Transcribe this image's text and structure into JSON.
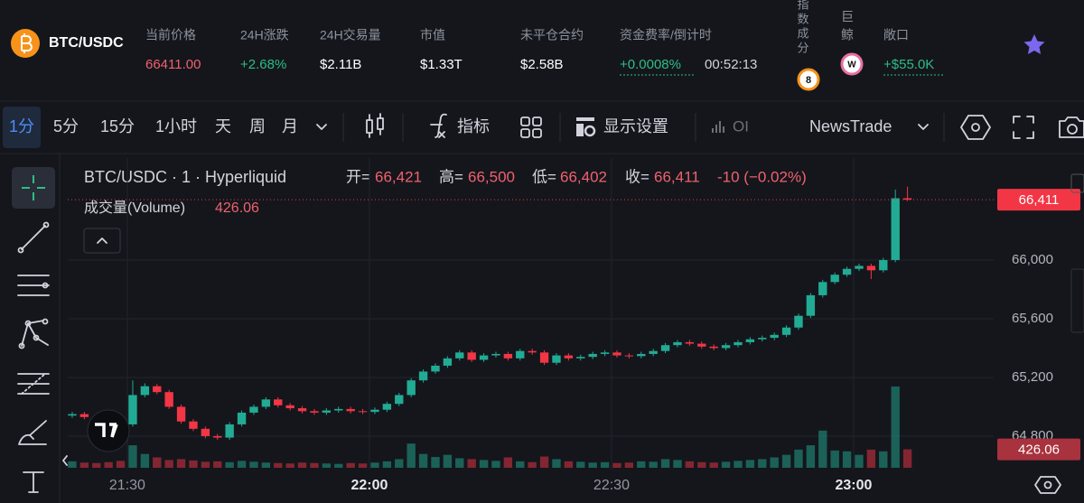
{
  "header": {
    "symbol": "BTC/USDC",
    "stats": [
      {
        "label": "当前价格",
        "value": "66411.00"
      },
      {
        "label": "24H涨跌",
        "value": "+2.68%"
      },
      {
        "label": "24H交易量",
        "value": "$2.11B"
      },
      {
        "label": "市值",
        "value": "$1.33T"
      },
      {
        "label": "未平仓合约",
        "value": "$2.58B"
      },
      {
        "label": "资金费率/倒计时",
        "value": "+0.0008%",
        "countdown": "00:52:13"
      }
    ],
    "index_label": [
      "指",
      "数",
      "成",
      "分"
    ],
    "index_badge": "8",
    "whale_label": [
      "巨",
      "鲸"
    ],
    "whale_badge": "W",
    "exposure_label": "敞口",
    "exposure_value": "+$55.0K"
  },
  "toolbar": {
    "intervals": [
      "1分",
      "5分",
      "15分",
      "1小时",
      "天",
      "周",
      "月"
    ],
    "indicators": "指标",
    "display_settings": "显示设置",
    "oi": "OI",
    "source": "NewsTrade"
  },
  "legend": {
    "title": "BTC/USDC · 1 · Hyperliquid",
    "open_label": "开=",
    "open": "66,421",
    "high_label": "高=",
    "high": "66,500",
    "low_label": "低=",
    "low": "66,402",
    "close_label": "收=",
    "close": "66,411",
    "change": "-10 (−0.02%)",
    "volume_label": "成交量(Volume)"
  },
  "chart_data": {
    "type": "candlestick",
    "up_color": "#22ab94",
    "down_color": "#f23645",
    "open": [
      64940,
      64950,
      64930,
      64920,
      64900,
      64880,
      65080,
      65140,
      65100,
      65000,
      64900,
      64850,
      64800,
      64790,
      64880,
      64960,
      65000,
      65050,
      65010,
      64990,
      64970,
      64960,
      64975,
      64985,
      64970,
      64965,
      64980,
      65020,
      65080,
      65180,
      65240,
      65280,
      65330,
      65370,
      65320,
      65350,
      65360,
      65330,
      65380,
      65370,
      65300,
      65350,
      65330,
      65340,
      65360,
      65370,
      65350,
      65345,
      65360,
      65380,
      65420,
      65440,
      65430,
      65410,
      65400,
      65420,
      65440,
      65460,
      65470,
      65490,
      65540,
      65620,
      65760,
      65850,
      65900,
      65940,
      65960,
      65930,
      66000,
      66421
    ],
    "high": [
      64965,
      64965,
      64945,
      64935,
      64915,
      65180,
      65160,
      65155,
      65115,
      65015,
      64915,
      64865,
      64815,
      64895,
      64975,
      65015,
      65065,
      65065,
      65025,
      65005,
      64985,
      64990,
      65000,
      65000,
      64985,
      64995,
      65035,
      65095,
      65195,
      65255,
      65295,
      65345,
      65385,
      65385,
      65365,
      65375,
      65375,
      65395,
      65395,
      65385,
      65365,
      65365,
      65355,
      65375,
      65385,
      65385,
      65365,
      65375,
      65395,
      65435,
      65455,
      65455,
      65445,
      65425,
      65435,
      65455,
      65475,
      65485,
      65505,
      65555,
      65635,
      65775,
      65865,
      65915,
      65955,
      65975,
      65975,
      66015,
      66480,
      66500
    ],
    "low": [
      64925,
      64915,
      64905,
      64885,
      64820,
      64865,
      65065,
      65085,
      64985,
      64885,
      64835,
      64785,
      64775,
      64775,
      64865,
      64945,
      64985,
      64995,
      64975,
      64955,
      64945,
      64945,
      64960,
      64955,
      64950,
      64950,
      64965,
      65005,
      65065,
      65165,
      65225,
      65265,
      65315,
      65305,
      65305,
      65335,
      65315,
      65315,
      65355,
      65285,
      65285,
      65315,
      65315,
      65325,
      65345,
      65335,
      65330,
      65330,
      65345,
      65365,
      65405,
      65415,
      65395,
      65385,
      65385,
      65405,
      65425,
      65445,
      65455,
      65475,
      65525,
      65605,
      65745,
      65835,
      65885,
      65925,
      65870,
      65915,
      65985,
      66402
    ],
    "close": [
      64950,
      64930,
      64920,
      64900,
      64880,
      65080,
      65140,
      65100,
      65000,
      64900,
      64850,
      64800,
      64790,
      64880,
      64960,
      65000,
      65050,
      65010,
      64990,
      64970,
      64960,
      64975,
      64985,
      64970,
      64965,
      64980,
      65020,
      65080,
      65180,
      65240,
      65280,
      65330,
      65370,
      65320,
      65350,
      65360,
      65330,
      65380,
      65370,
      65300,
      65350,
      65330,
      65340,
      65360,
      65370,
      65350,
      65345,
      65360,
      65380,
      65420,
      65440,
      65430,
      65410,
      65400,
      65420,
      65440,
      65460,
      65470,
      65490,
      65540,
      65620,
      65760,
      65850,
      65900,
      65940,
      65960,
      65930,
      66000,
      66421,
      66411
    ],
    "volume": [
      150,
      120,
      110,
      130,
      160,
      520,
      320,
      240,
      180,
      200,
      170,
      140,
      150,
      130,
      160,
      140,
      120,
      110,
      100,
      120,
      110,
      100,
      90,
      110,
      100,
      120,
      150,
      200,
      560,
      320,
      250,
      300,
      220,
      200,
      180,
      160,
      240,
      150,
      130,
      260,
      200,
      150,
      140,
      120,
      130,
      110,
      120,
      150,
      140,
      200,
      180,
      150,
      130,
      120,
      140,
      160,
      180,
      200,
      240,
      300,
      420,
      520,
      860,
      400,
      380,
      300,
      420,
      380,
      1880,
      426.06
    ],
    "last_price_label": "66,411",
    "xlim": [
      -0.37,
      76.12
    ],
    "xticks": [
      {
        "value": 4.55,
        "label": "21:30"
      },
      {
        "value": 24.55,
        "label": "22:00"
      },
      {
        "value": 44.55,
        "label": "22:30"
      },
      {
        "value": 64.55,
        "label": "23:00"
      }
    ],
    "ylim": [
      64572,
      66695
    ],
    "yticks": [
      {
        "value": 64800,
        "label": "64,800"
      },
      {
        "value": 65200,
        "label": "65,200"
      },
      {
        "value": 65600,
        "label": "65,600"
      },
      {
        "value": 66000,
        "label": "66,000"
      }
    ],
    "grid": true
  }
}
